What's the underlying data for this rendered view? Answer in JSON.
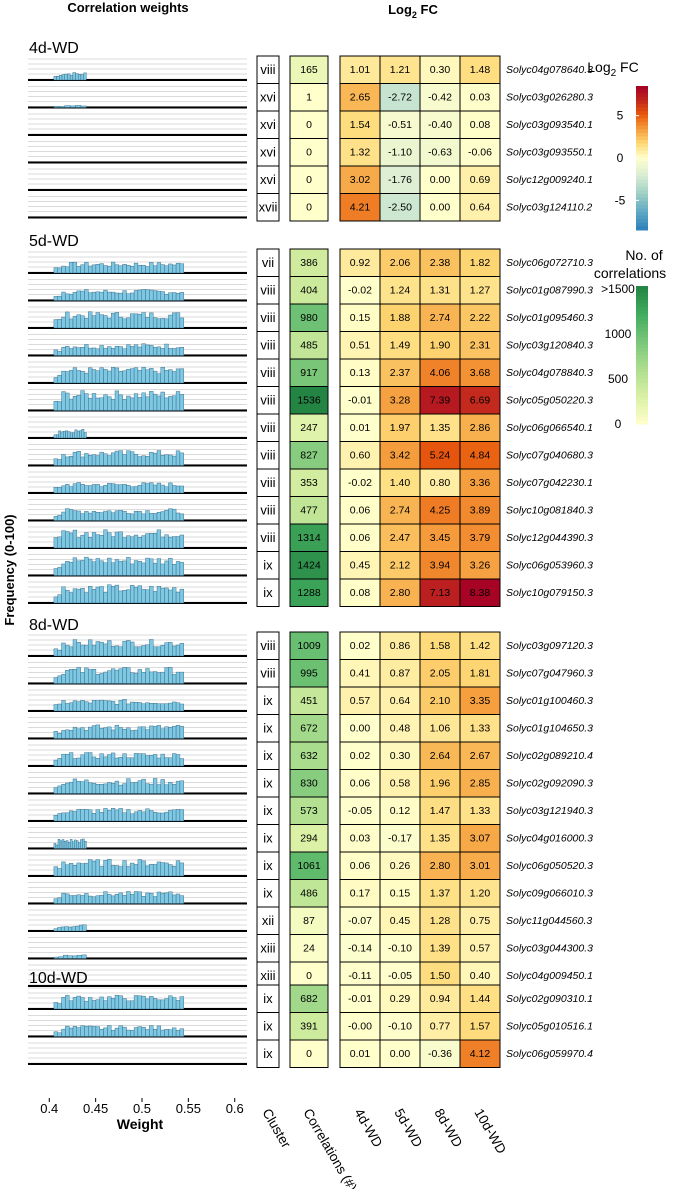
{
  "header": {
    "corr_title": "Correlation weights",
    "fc_title_main": "Log",
    "fc_title_sub": "2",
    "fc_title_end": " FC"
  },
  "y_axis_label": "Frequency (0-100)",
  "x_axis": {
    "label": "Weight",
    "ticks": [
      "0.4",
      "0.45",
      "0.5",
      "0.55",
      "0.6"
    ],
    "range": [
      0.39,
      0.61
    ]
  },
  "column_labels": [
    "Cluster",
    "Correlations (#)",
    "4d-WD",
    "5d-WD",
    "8d-WD",
    "10d-WD"
  ],
  "legend_fc": {
    "title_main": "Log",
    "title_sub": "2",
    "title_end": " FC",
    "ticks": [
      "5",
      "0",
      "-5"
    ],
    "range": [
      -8.5,
      8.5
    ],
    "colors": {
      "high": "#a50026",
      "mid": "#ffffcc",
      "low": "#2c7fb8"
    }
  },
  "legend_corr": {
    "title_line1": "No. of",
    "title_line2": "correlations",
    "ticks": [
      ">1500",
      "1000",
      "500",
      "0"
    ],
    "max": 1536,
    "colors": {
      "low": "#ffffcc",
      "high": "#238443"
    }
  },
  "bar_color": "#7ec8e3",
  "chart_data": {
    "type": "heatmap",
    "groups": [
      {
        "name": "4d-WD",
        "rows": [
          {
            "gene": "Solyc04g078640.3",
            "cluster": "viii",
            "corr": 165,
            "fc": [
              "1.01",
              "1.21",
              "0.30",
              "1.48"
            ]
          },
          {
            "gene": "Solyc03g026280.3",
            "cluster": "xvi",
            "corr": 1,
            "fc": [
              "2.65",
              "-2.72",
              "-0.42",
              "0.03"
            ]
          },
          {
            "gene": "Solyc03g093540.1",
            "cluster": "xvi",
            "corr": 0,
            "fc": [
              "1.54",
              "-0.51",
              "-0.40",
              "0.08"
            ]
          },
          {
            "gene": "Solyc03g093550.1",
            "cluster": "xvi",
            "corr": 0,
            "fc": [
              "1.32",
              "-1.10",
              "-0.63",
              "-0.06"
            ]
          },
          {
            "gene": "Solyc12g009240.1",
            "cluster": "xvi",
            "corr": 0,
            "fc": [
              "3.02",
              "-1.76",
              "0.00",
              "0.69"
            ]
          },
          {
            "gene": "Solyc03g124110.2",
            "cluster": "xvii",
            "corr": 0,
            "fc": [
              "4.21",
              "-2.50",
              "0.00",
              "0.64"
            ]
          }
        ]
      },
      {
        "name": "5d-WD",
        "rows": [
          {
            "gene": "Solyc06g072710.3",
            "cluster": "vii",
            "corr": 386,
            "fc": [
              "0.92",
              "2.06",
              "2.38",
              "1.82"
            ]
          },
          {
            "gene": "Solyc01g087990.3",
            "cluster": "viii",
            "corr": 404,
            "fc": [
              "-0.02",
              "1.24",
              "1.31",
              "1.27"
            ]
          },
          {
            "gene": "Solyc01g095460.3",
            "cluster": "viii",
            "corr": 980,
            "fc": [
              "0.15",
              "1.88",
              "2.74",
              "2.22"
            ]
          },
          {
            "gene": "Solyc03g120840.3",
            "cluster": "viii",
            "corr": 485,
            "fc": [
              "0.51",
              "1.49",
              "1.90",
              "2.31"
            ]
          },
          {
            "gene": "Solyc04g078840.3",
            "cluster": "viii",
            "corr": 917,
            "fc": [
              "0.13",
              "2.37",
              "4.06",
              "3.68"
            ]
          },
          {
            "gene": "Solyc05g050220.3",
            "cluster": "viii",
            "corr": 1536,
            "fc": [
              "-0.01",
              "3.28",
              "7.39",
              "6.69"
            ]
          },
          {
            "gene": "Solyc06g066540.1",
            "cluster": "viii",
            "corr": 247,
            "fc": [
              "0.01",
              "1.97",
              "1.35",
              "2.86"
            ]
          },
          {
            "gene": "Solyc07g040680.3",
            "cluster": "viii",
            "corr": 827,
            "fc": [
              "0.60",
              "3.42",
              "5.24",
              "4.84"
            ]
          },
          {
            "gene": "Solyc07g042230.1",
            "cluster": "viii",
            "corr": 353,
            "fc": [
              "-0.02",
              "1.40",
              "0.80",
              "3.36"
            ]
          },
          {
            "gene": "Solyc10g081840.3",
            "cluster": "viii",
            "corr": 477,
            "fc": [
              "0.06",
              "2.74",
              "4.25",
              "3.89"
            ]
          },
          {
            "gene": "Solyc12g044390.3",
            "cluster": "viii",
            "corr": 1314,
            "fc": [
              "0.06",
              "2.47",
              "3.45",
              "3.79"
            ]
          },
          {
            "gene": "Solyc06g053960.3",
            "cluster": "ix",
            "corr": 1424,
            "fc": [
              "0.45",
              "2.12",
              "3.94",
              "3.26"
            ]
          },
          {
            "gene": "Solyc10g079150.3",
            "cluster": "ix",
            "corr": 1288,
            "fc": [
              "0.08",
              "2.80",
              "7.13",
              "8.38"
            ]
          }
        ]
      },
      {
        "name": "8d-WD",
        "rows": [
          {
            "gene": "Solyc03g097120.3",
            "cluster": "viii",
            "corr": 1009,
            "fc": [
              "0.02",
              "0.86",
              "1.58",
              "1.42"
            ]
          },
          {
            "gene": "Solyc07g047960.3",
            "cluster": "viii",
            "corr": 995,
            "fc": [
              "0.41",
              "0.87",
              "2.05",
              "1.81"
            ]
          },
          {
            "gene": "Solyc01g100460.3",
            "cluster": "ix",
            "corr": 451,
            "fc": [
              "0.57",
              "0.64",
              "2.10",
              "3.35"
            ]
          },
          {
            "gene": "Solyc01g104650.3",
            "cluster": "ix",
            "corr": 672,
            "fc": [
              "0.00",
              "0.48",
              "1.06",
              "1.33"
            ]
          },
          {
            "gene": "Solyc02g089210.4",
            "cluster": "ix",
            "corr": 632,
            "fc": [
              "0.02",
              "0.30",
              "2.64",
              "2.67"
            ]
          },
          {
            "gene": "Solyc02g092090.3",
            "cluster": "ix",
            "corr": 830,
            "fc": [
              "0.06",
              "0.58",
              "1.96",
              "2.85"
            ]
          },
          {
            "gene": "Solyc03g121940.3",
            "cluster": "ix",
            "corr": 573,
            "fc": [
              "-0.05",
              "0.12",
              "1.47",
              "1.33"
            ]
          },
          {
            "gene": "Solyc04g016000.3",
            "cluster": "ix",
            "corr": 294,
            "fc": [
              "0.03",
              "-0.17",
              "1.35",
              "3.07"
            ]
          },
          {
            "gene": "Solyc06g050520.3",
            "cluster": "ix",
            "corr": 1061,
            "fc": [
              "0.06",
              "0.26",
              "2.80",
              "3.01"
            ]
          },
          {
            "gene": "Solyc09g066010.3",
            "cluster": "ix",
            "corr": 486,
            "fc": [
              "0.17",
              "0.15",
              "1.37",
              "1.20"
            ]
          },
          {
            "gene": "Solyc11g044560.3",
            "cluster": "xii",
            "corr": 87,
            "fc": [
              "-0.07",
              "0.45",
              "1.28",
              "0.75"
            ]
          },
          {
            "gene": "Solyc03g044300.3",
            "cluster": "xiii",
            "corr": 24,
            "fc": [
              "-0.14",
              "-0.10",
              "1.39",
              "0.57"
            ]
          },
          {
            "gene": "Solyc04g009450.1",
            "cluster": "xiii",
            "corr": 0,
            "fc": [
              "-0.11",
              "-0.05",
              "1.50",
              "0.40"
            ]
          }
        ]
      },
      {
        "name": "10d-WD",
        "rows": [
          {
            "gene": "Solyc02g090310.1",
            "cluster": "ix",
            "corr": 682,
            "fc": [
              "-0.01",
              "0.29",
              "0.94",
              "1.44"
            ]
          },
          {
            "gene": "Solyc05g010516.1",
            "cluster": "ix",
            "corr": 391,
            "fc": [
              "-0.00",
              "-0.10",
              "0.77",
              "1.57"
            ]
          },
          {
            "gene": "Solyc06g059970.4",
            "cluster": "ix",
            "corr": 0,
            "fc": [
              "0.01",
              "0.00",
              "-0.36",
              "4.12"
            ]
          }
        ]
      }
    ]
  }
}
